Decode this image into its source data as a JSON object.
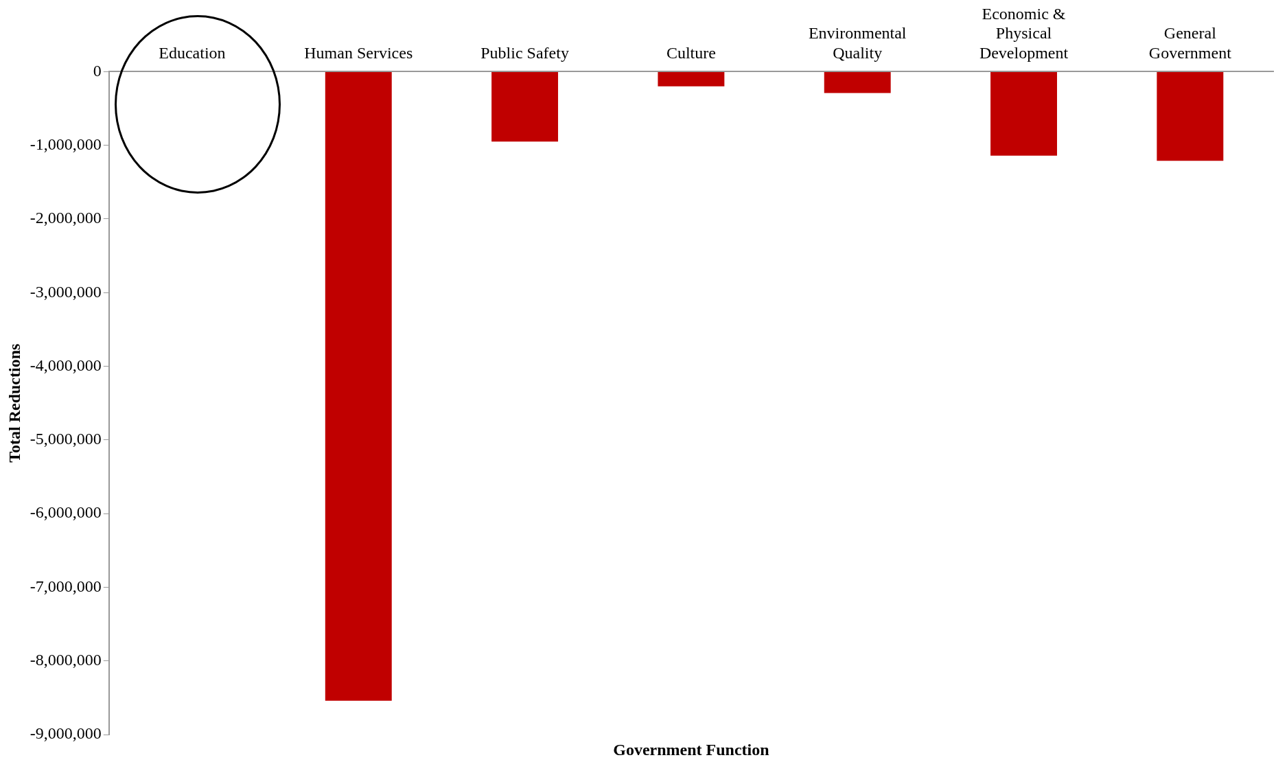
{
  "chart_data": {
    "type": "bar",
    "xlabel": "Government Function",
    "ylabel": "Total Reductions",
    "categories": [
      "Education",
      "Human Services",
      "Public Safety",
      "Culture",
      "Environmental Quality",
      "Economic & Physical Development",
      "General Government"
    ],
    "values": [
      0,
      -8540000,
      -950000,
      -200000,
      -290000,
      -1140000,
      -1210000
    ],
    "color": "#c00000",
    "ylim": [
      -9000000,
      0
    ],
    "yticks": [
      {
        "value": -9000000,
        "label": "-9,000,000"
      },
      {
        "value": -8000000,
        "label": "-8,000,000"
      },
      {
        "value": -7000000,
        "label": "-7,000,000"
      },
      {
        "value": -6000000,
        "label": "-6,000,000"
      },
      {
        "value": -5000000,
        "label": "-5,000,000"
      },
      {
        "value": -4000000,
        "label": "-4,000,000"
      },
      {
        "value": -3000000,
        "label": "-3,000,000"
      },
      {
        "value": -2000000,
        "label": "-2,000,000"
      },
      {
        "value": -1000000,
        "label": "-1,000,000"
      },
      0
    ],
    "grid": false,
    "legend": false
  }
}
